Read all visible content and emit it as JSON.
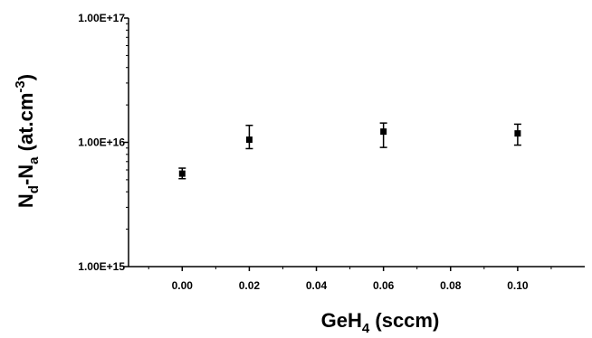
{
  "chart_data": {
    "type": "scatter",
    "title": "",
    "xlabel": {
      "main": "GeH",
      "sub": "4",
      "rest": " (sccm)"
    },
    "ylabel": {
      "n": "N",
      "d": "d",
      "minus": "-N",
      "a": "a",
      "rest": " (at.cm",
      "exp": "-3",
      "close": ")"
    },
    "x_ticks": [
      "0.00",
      "0.02",
      "0.04",
      "0.06",
      "0.08",
      "0.10"
    ],
    "x_tick_values": [
      0,
      0.02,
      0.04,
      0.06,
      0.08,
      0.1
    ],
    "xlim": [
      -0.016,
      0.12
    ],
    "y_scale": "log",
    "y_ticks": [
      "1.00E+15",
      "1.00E+16",
      "1.00E+17"
    ],
    "y_tick_values": [
      1000000000000000.0,
      1e+16,
      1e+17
    ],
    "ylim": [
      1000000000000000.0,
      1e+17
    ],
    "grid": false,
    "legend": "none",
    "marker": "square",
    "color": "#000000",
    "points": [
      {
        "x": 0.0,
        "y": 5600000000000000.0,
        "y_low": 5100000000000000.0,
        "y_high": 6200000000000000.0
      },
      {
        "x": 0.02,
        "y": 1.05e+16,
        "y_low": 8900000000000000.0,
        "y_high": 1.37e+16
      },
      {
        "x": 0.06,
        "y": 1.22e+16,
        "y_low": 9100000000000000.0,
        "y_high": 1.43e+16
      },
      {
        "x": 0.1,
        "y": 1.18e+16,
        "y_low": 9500000000000000.0,
        "y_high": 1.4e+16
      }
    ]
  }
}
